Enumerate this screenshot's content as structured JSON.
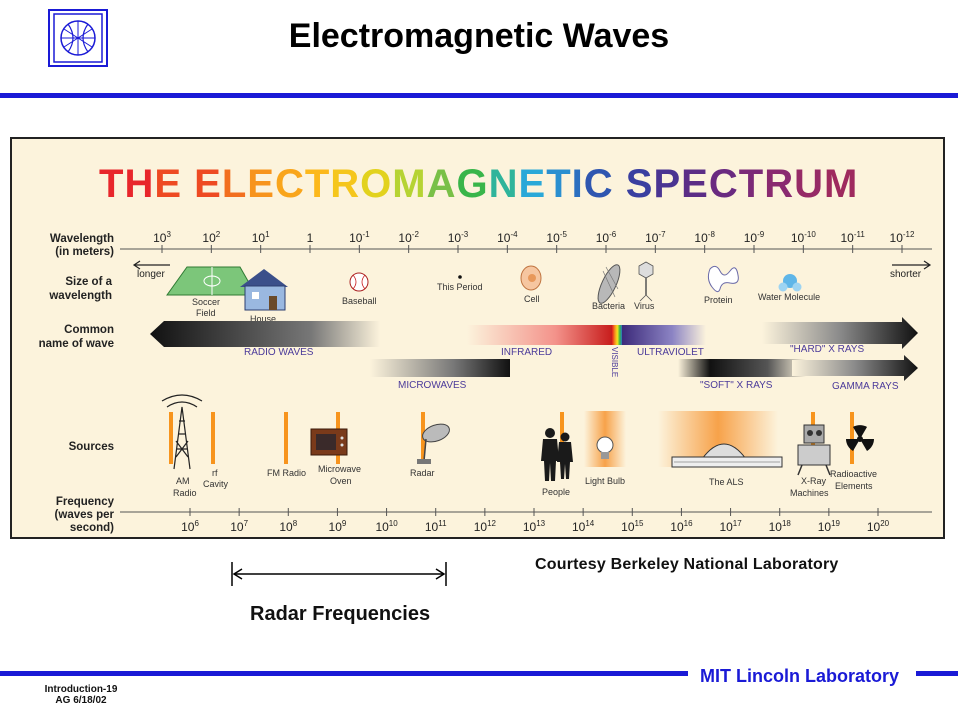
{
  "slide": {
    "title": "Electromagnetic Waves",
    "courtesy": "Courtesy Berkeley National Laboratory",
    "radar_label": "Radar Frequencies",
    "lab_name": "MIT Lincoln Laboratory",
    "slide_id_line1": "Introduction-19",
    "slide_id_line2": "AG 6/18/02"
  },
  "spectrum": {
    "heading": "THE ELECTROMAGNETIC SPECTRUM",
    "heading_colors": [
      "#e8262b",
      "#e8262b",
      "#ee4a22",
      "#ee4a22",
      "#f26f1f",
      "#f7941d",
      "#f9a51b",
      "#fcb81b",
      "#f5c61c",
      "#e2d21d",
      "#b6d333",
      "#79c047",
      "#39b54a",
      "#2fb49b",
      "#2aa8d8",
      "#2a8fd0",
      "#2b6fc0",
      "#2f56b0",
      "#3a3fa0",
      "#4a3492",
      "#5b2d86",
      "#6a2a80",
      "#7b2a78",
      "#8a2a70",
      "#962a66",
      "#9e2a5e",
      "#a82a55",
      "#b22a4c"
    ],
    "row_labels": {
      "wavelength_line1": "Wavelength",
      "wavelength_line2": "(in meters)",
      "size_line1": "Size of a",
      "size_line2": "wavelength",
      "common_line1": "Common",
      "common_line2": "name of wave",
      "sources": "Sources",
      "frequency_line1": "Frequency",
      "frequency_line2": "(waves per",
      "frequency_line3": "second)"
    },
    "longer": "longer",
    "shorter": "shorter",
    "wavelength_ticks": [
      {
        "base": "10",
        "exp": "3"
      },
      {
        "base": "10",
        "exp": "2"
      },
      {
        "base": "10",
        "exp": "1"
      },
      {
        "base": "1",
        "exp": ""
      },
      {
        "base": "10",
        "exp": "-1"
      },
      {
        "base": "10",
        "exp": "-2"
      },
      {
        "base": "10",
        "exp": "-3"
      },
      {
        "base": "10",
        "exp": "-4"
      },
      {
        "base": "10",
        "exp": "-5"
      },
      {
        "base": "10",
        "exp": "-6"
      },
      {
        "base": "10",
        "exp": "-7"
      },
      {
        "base": "10",
        "exp": "-8"
      },
      {
        "base": "10",
        "exp": "-9"
      },
      {
        "base": "10",
        "exp": "-10"
      },
      {
        "base": "10",
        "exp": "-11"
      },
      {
        "base": "10",
        "exp": "-12"
      }
    ],
    "frequency_ticks": [
      {
        "base": "10",
        "exp": "6"
      },
      {
        "base": "10",
        "exp": "7"
      },
      {
        "base": "10",
        "exp": "8"
      },
      {
        "base": "10",
        "exp": "9"
      },
      {
        "base": "10",
        "exp": "10"
      },
      {
        "base": "10",
        "exp": "11"
      },
      {
        "base": "10",
        "exp": "12"
      },
      {
        "base": "10",
        "exp": "13"
      },
      {
        "base": "10",
        "exp": "14"
      },
      {
        "base": "10",
        "exp": "15"
      },
      {
        "base": "10",
        "exp": "16"
      },
      {
        "base": "10",
        "exp": "17"
      },
      {
        "base": "10",
        "exp": "18"
      },
      {
        "base": "10",
        "exp": "19"
      },
      {
        "base": "10",
        "exp": "20"
      }
    ],
    "size_objects": {
      "soccer_field_1": "Soccer",
      "soccer_field_2": "Field",
      "house": "House",
      "baseball": "Baseball",
      "period": "This Period",
      "cell": "Cell",
      "bacteria": "Bacteria",
      "virus": "Virus",
      "protein": "Protein",
      "water_molecule": "Water Molecule"
    },
    "wave_names": {
      "radio": "RADIO WAVES",
      "infrared": "INFRARED",
      "visible": "VISIBLE",
      "ultraviolet": "ULTRAVIOLET",
      "hard_xrays": "\"HARD\" X RAYS",
      "microwaves": "MICROWAVES",
      "soft_xrays": "\"SOFT\" X RAYS",
      "gamma": "GAMMA RAYS"
    },
    "sources": {
      "am_radio_1": "AM",
      "am_radio_2": "Radio",
      "rf_cavity_1": "rf",
      "rf_cavity_2": "Cavity",
      "fm_radio": "FM Radio",
      "microwave_oven_1": "Microwave",
      "microwave_oven_2": "Oven",
      "radar": "Radar",
      "people": "People",
      "light_bulb": "Light Bulb",
      "als": "The ALS",
      "xray_1": "X-Ray",
      "xray_2": "Machines",
      "radioactive_1": "Radioactive",
      "radioactive_2": "Elements"
    },
    "colors": {
      "background": "#fcf3dc",
      "wave_label": "#4b3a9a",
      "source_bar": "#f7941d"
    }
  }
}
